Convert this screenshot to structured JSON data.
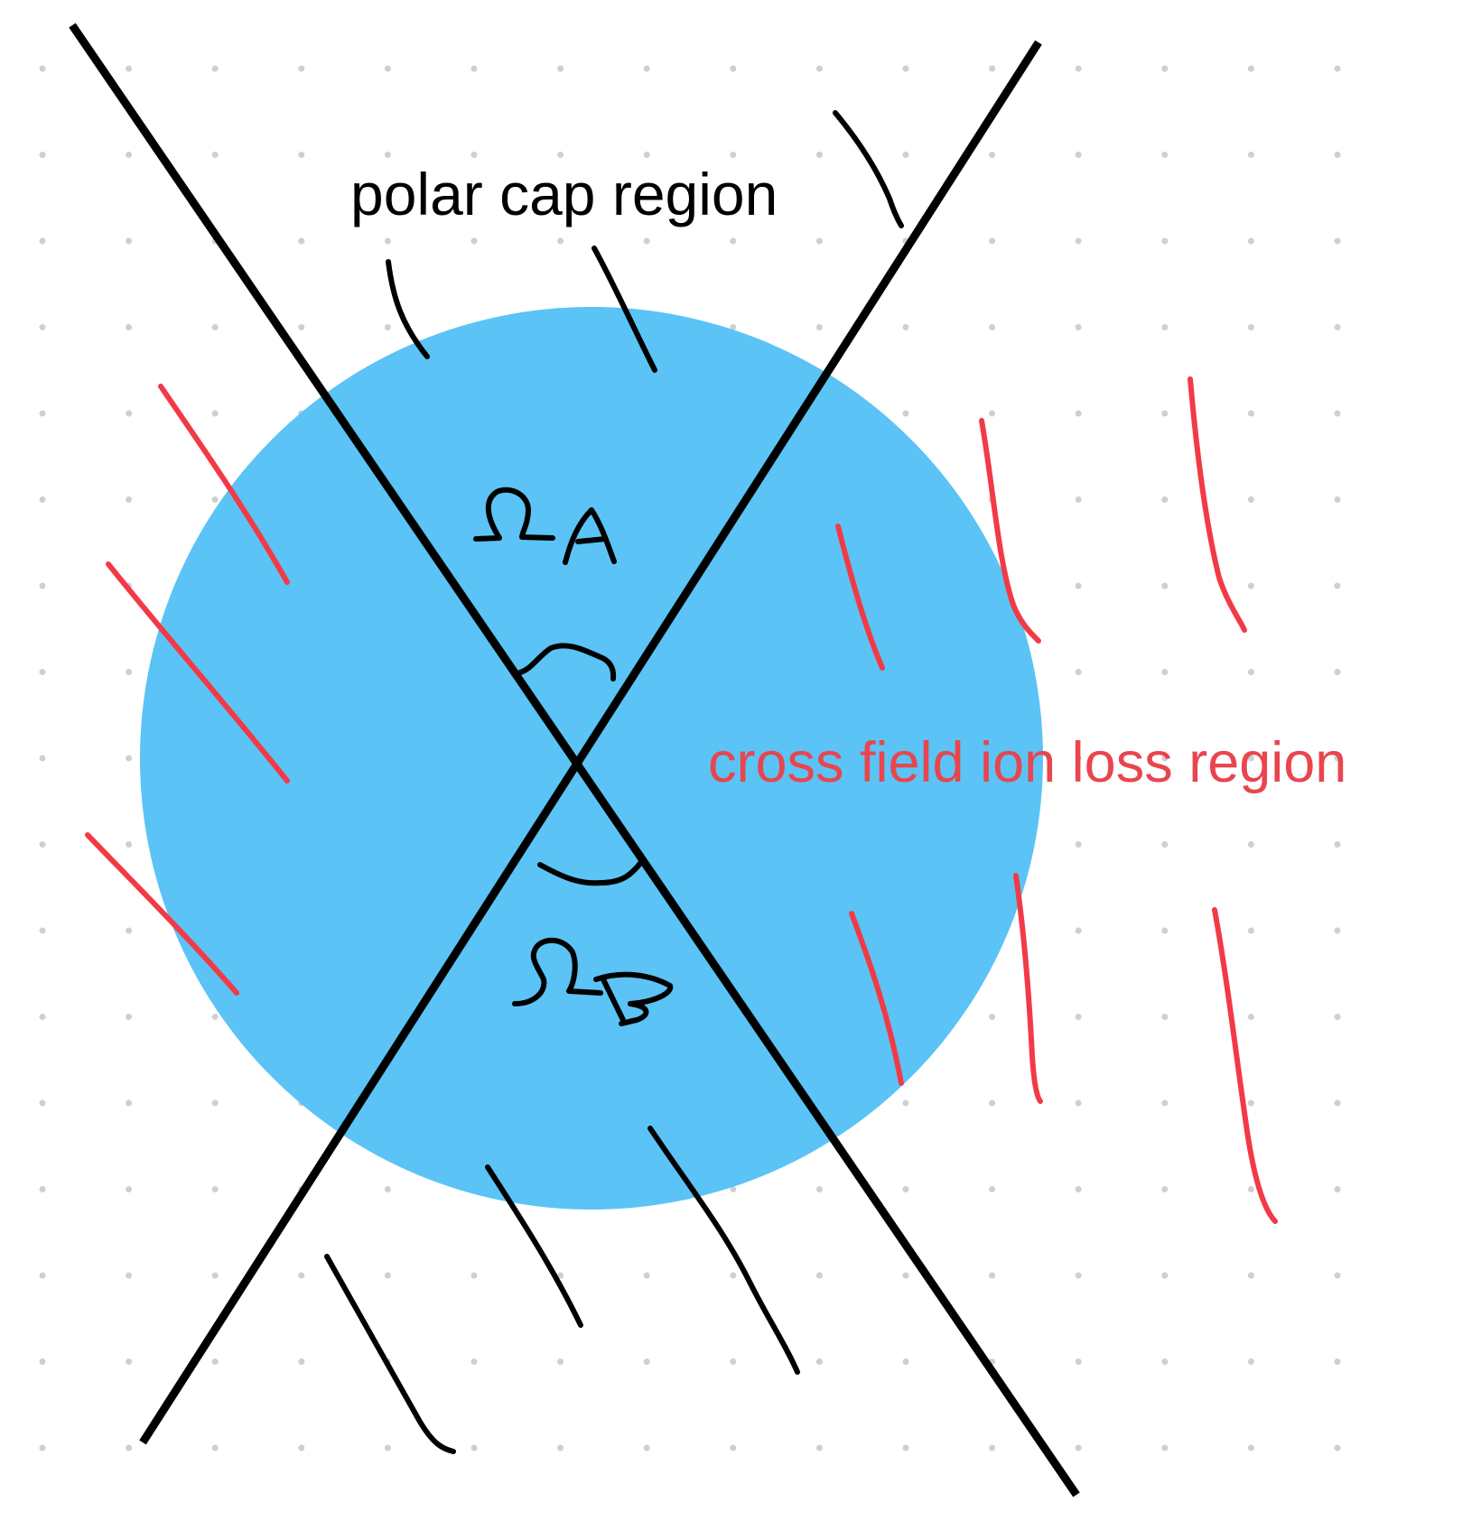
{
  "labels": {
    "polar_cap": "polar cap region",
    "cross_field": "cross field ion loss region",
    "omega_a": "ΩA",
    "omega_b": "ΩB"
  },
  "colors": {
    "background": "#ffffff",
    "dot_grid": "#cfcfcf",
    "circle_fill": "#5bc3f5",
    "ink_black": "#000000",
    "ink_red": "#f23a46",
    "label_red": "#e9454d"
  },
  "icons": {
    "omega_a": "omega-a-glyph",
    "omega_b": "omega-b-glyph"
  }
}
